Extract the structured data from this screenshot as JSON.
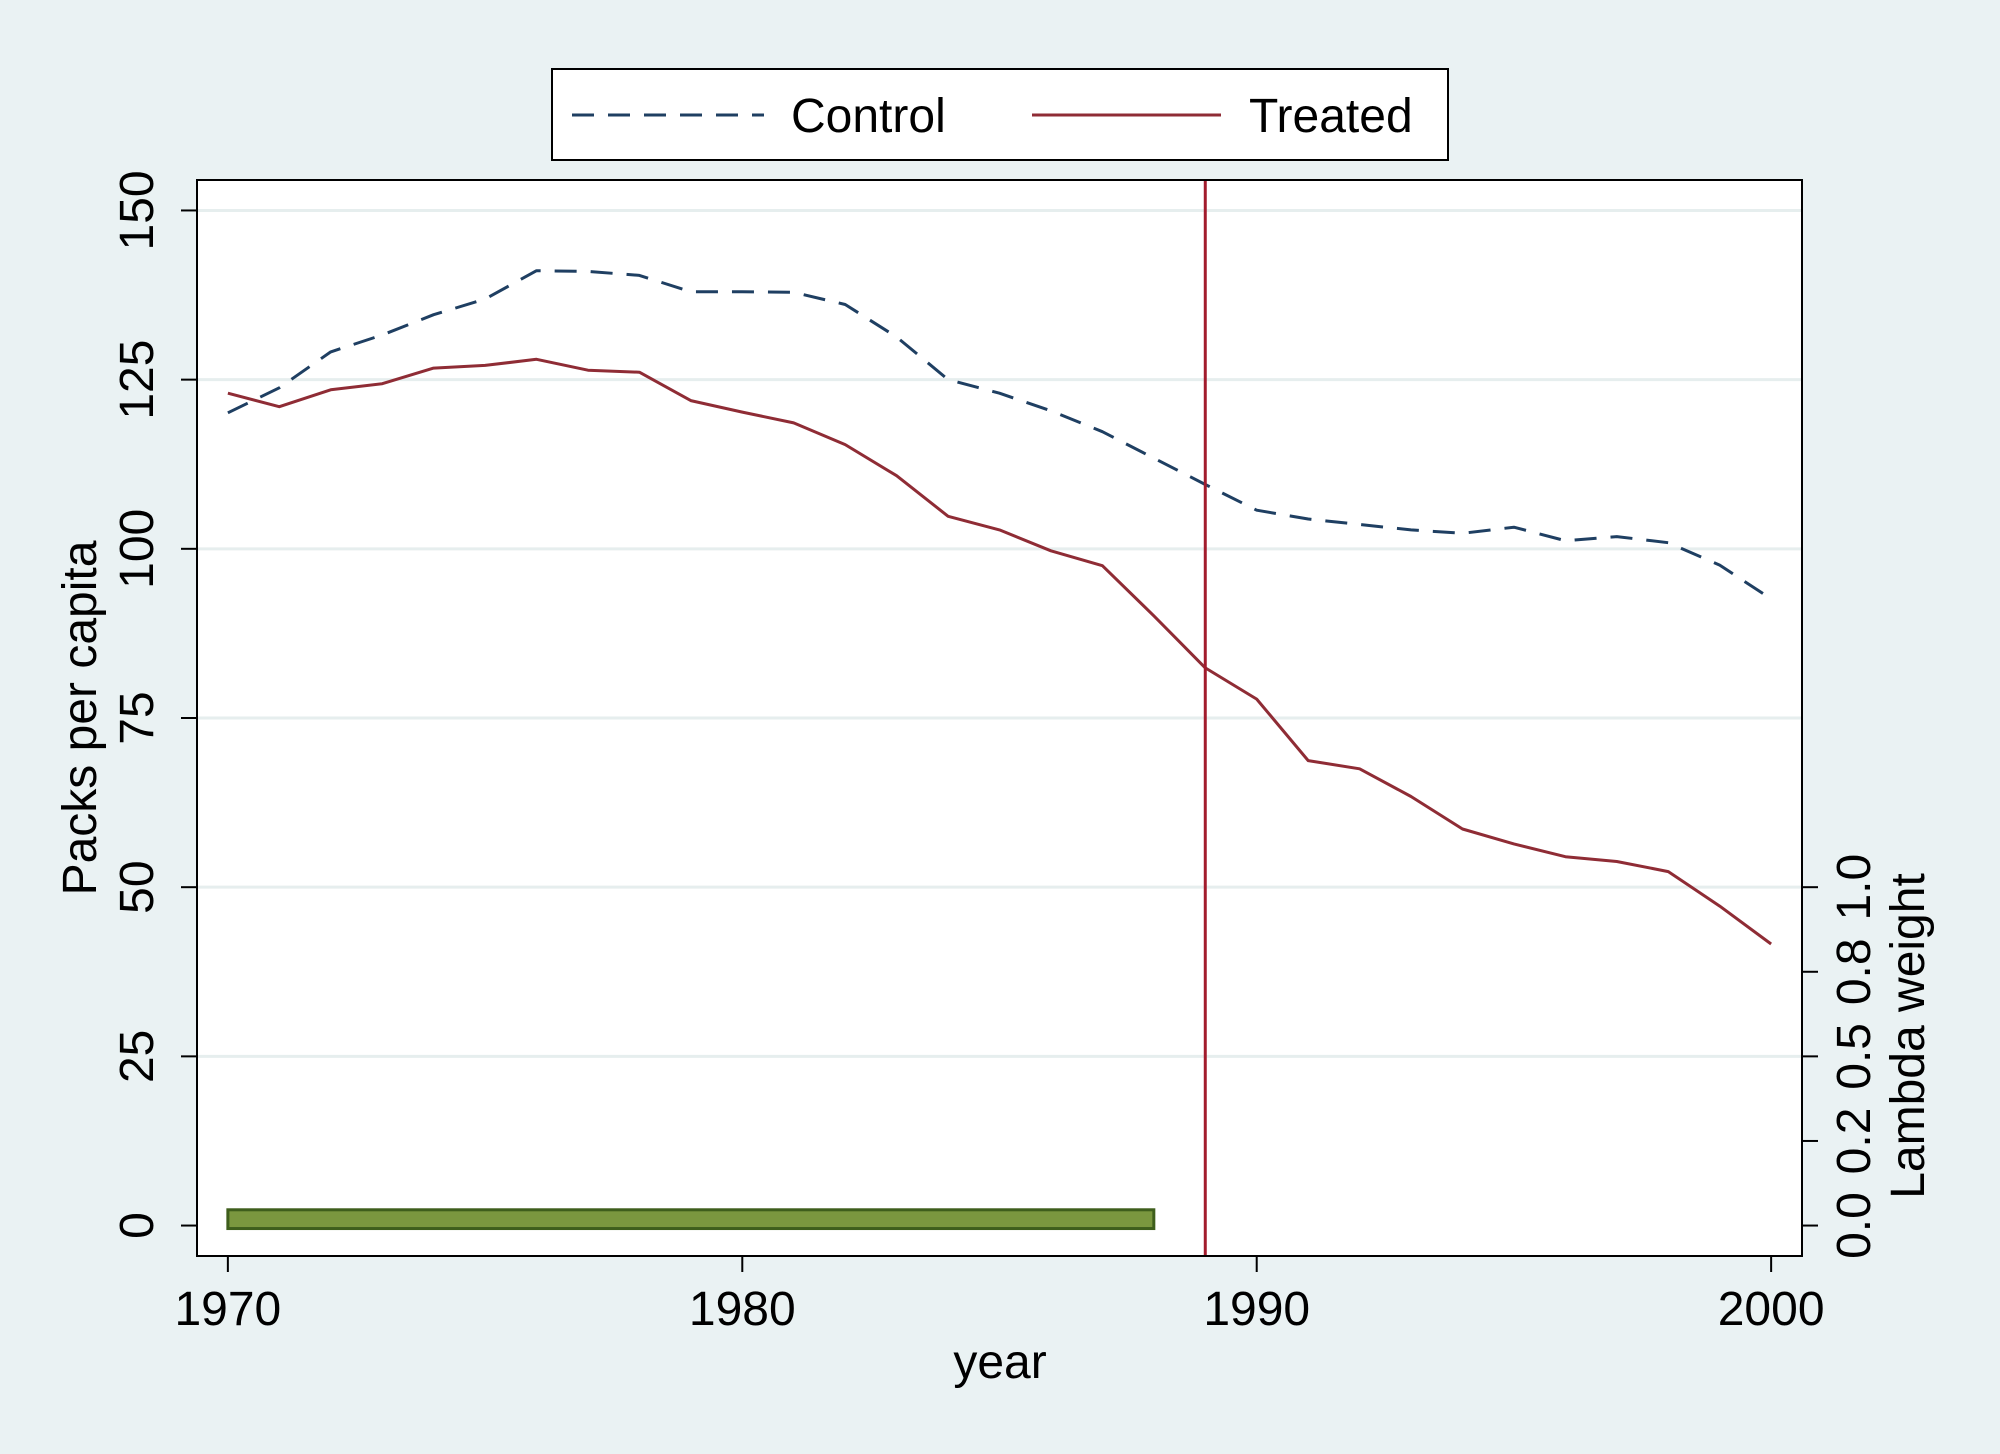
{
  "chart_data": {
    "type": "line",
    "xlabel": "year",
    "ylabel": "Packs per capita",
    "y2label": "Lambda weight",
    "xlim": [
      1969.4,
      2000.6
    ],
    "ylim": [
      -4.5,
      154.5
    ],
    "y2lim": [
      -0.09,
      3.09
    ],
    "x_ticks": [
      1970,
      1980,
      1990,
      2000
    ],
    "y_ticks": [
      0,
      25,
      50,
      75,
      100,
      125,
      150
    ],
    "y2_ticks": [
      0.0,
      0.25,
      0.5,
      0.75,
      1.0
    ],
    "y2_tick_labels": [
      "0.0",
      "0.2",
      "0.5",
      "0.8",
      "1.0"
    ],
    "grid": true,
    "legend_position": "top",
    "x": [
      1970,
      1971,
      1972,
      1973,
      1974,
      1975,
      1976,
      1977,
      1978,
      1979,
      1980,
      1981,
      1982,
      1983,
      1984,
      1985,
      1986,
      1987,
      1988,
      1989,
      1990,
      1991,
      1992,
      1993,
      1994,
      1995,
      1996,
      1997,
      1998,
      1999,
      2000
    ],
    "series": [
      {
        "name": "Control",
        "color": "#1f3f62",
        "dash": "dashed",
        "values": [
          120.1,
          123.8,
          129.1,
          131.6,
          134.6,
          136.9,
          141.1,
          141.0,
          140.4,
          138.0,
          138.0,
          137.9,
          136.1,
          131.3,
          125.0,
          123.0,
          120.4,
          117.3,
          113.4,
          109.5,
          105.7,
          104.4,
          103.6,
          102.8,
          102.3,
          103.2,
          101.2,
          101.8,
          100.9,
          97.6,
          92.6
        ],
        "legend_label": "Control"
      },
      {
        "name": "Treated",
        "color": "#8f2c35",
        "dash": "solid",
        "values": [
          123.0,
          121.0,
          123.5,
          124.4,
          126.7,
          127.1,
          128.0,
          126.4,
          126.1,
          121.9,
          120.2,
          118.6,
          115.4,
          110.8,
          104.8,
          102.8,
          99.7,
          97.5,
          90.1,
          82.4,
          77.8,
          68.7,
          67.5,
          63.4,
          58.6,
          56.4,
          54.5,
          53.8,
          52.3,
          47.2,
          41.6
        ]
      }
    ],
    "lambda_weights": {
      "name": "Lambda weight",
      "color": "#5e7d2e",
      "x_start": 1970,
      "x_end": 1988,
      "value": 0.02
    },
    "treatment_line": {
      "x": 1989,
      "color": "#a21c2d"
    }
  }
}
